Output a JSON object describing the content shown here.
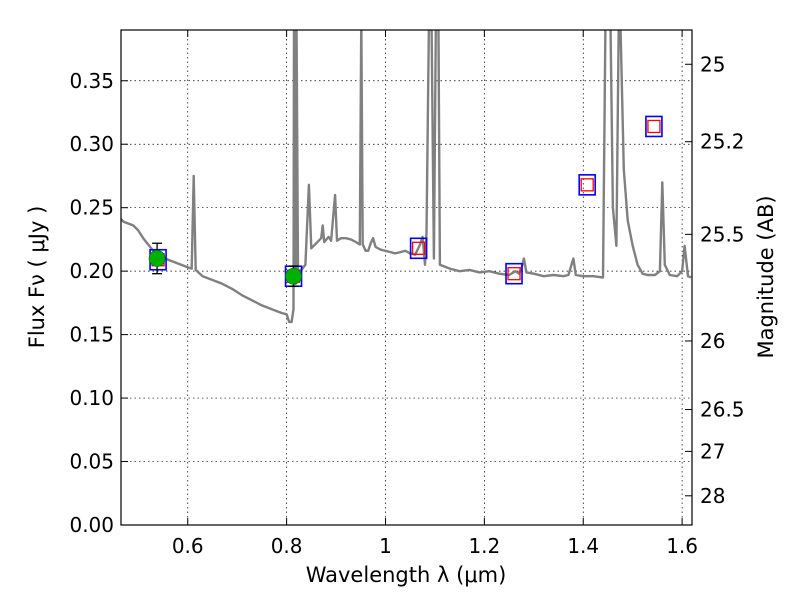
{
  "chart_data": {
    "type": "scatter",
    "xlabel": "Wavelength  λ (μm)",
    "ylabel": "Flux  Fν ( μJy )",
    "ylabel_right": "Magnitude (AB)",
    "xlim": [
      0.465,
      1.62
    ],
    "ylim": [
      0.0,
      0.39
    ],
    "grid": true,
    "x_ticks": [
      {
        "value": 0.6,
        "label": "0.6"
      },
      {
        "value": 0.8,
        "label": "0.8"
      },
      {
        "value": 1.0,
        "label": "1"
      },
      {
        "value": 1.2,
        "label": "1.2"
      },
      {
        "value": 1.4,
        "label": "1.4"
      },
      {
        "value": 1.6,
        "label": "1.6"
      }
    ],
    "y_ticks": [
      {
        "value": 0.0,
        "label": "0.00"
      },
      {
        "value": 0.05,
        "label": "0.05"
      },
      {
        "value": 0.1,
        "label": "0.10"
      },
      {
        "value": 0.15,
        "label": "0.15"
      },
      {
        "value": 0.2,
        "label": "0.20"
      },
      {
        "value": 0.25,
        "label": "0.25"
      },
      {
        "value": 0.3,
        "label": "0.30"
      },
      {
        "value": 0.35,
        "label": "0.35"
      }
    ],
    "mag_ticks": [
      {
        "label": "25",
        "flux": 0.363
      },
      {
        "label": "25.2",
        "flux": 0.302
      },
      {
        "label": "25.5",
        "flux": 0.229
      },
      {
        "label": "26",
        "flux": 0.145
      },
      {
        "label": "26.5",
        "flux": 0.091
      },
      {
        "label": "27",
        "flux": 0.058
      },
      {
        "label": "28",
        "flux": 0.023
      }
    ],
    "observed_points": [
      {
        "x": 0.538,
        "y": 0.21,
        "yerr": 0.012
      },
      {
        "x": 0.814,
        "y": 0.196,
        "yerr": 0.008
      }
    ],
    "model_band_flux": [
      {
        "x": 0.54,
        "y": 0.209
      },
      {
        "x": 0.814,
        "y": 0.196
      },
      {
        "x": 1.067,
        "y": 0.218
      },
      {
        "x": 1.26,
        "y": 0.198
      },
      {
        "x": 1.408,
        "y": 0.268
      },
      {
        "x": 1.543,
        "y": 0.314
      }
    ],
    "best_fit_band_flux": [
      {
        "x": 0.54,
        "y": 0.209
      },
      {
        "x": 0.814,
        "y": 0.196
      },
      {
        "x": 1.067,
        "y": 0.218
      },
      {
        "x": 1.26,
        "y": 0.198
      },
      {
        "x": 1.408,
        "y": 0.268
      },
      {
        "x": 1.543,
        "y": 0.314
      }
    ],
    "spectrum": [
      [
        0.465,
        0.241
      ],
      [
        0.47,
        0.239
      ],
      [
        0.49,
        0.236
      ],
      [
        0.5,
        0.232
      ],
      [
        0.51,
        0.226
      ],
      [
        0.52,
        0.221
      ],
      [
        0.53,
        0.216
      ],
      [
        0.54,
        0.213
      ],
      [
        0.56,
        0.209
      ],
      [
        0.58,
        0.206
      ],
      [
        0.6,
        0.203
      ],
      [
        0.608,
        0.202
      ],
      [
        0.612,
        0.275
      ],
      [
        0.616,
        0.201
      ],
      [
        0.63,
        0.196
      ],
      [
        0.65,
        0.193
      ],
      [
        0.67,
        0.19
      ],
      [
        0.69,
        0.186
      ],
      [
        0.71,
        0.181
      ],
      [
        0.73,
        0.177
      ],
      [
        0.75,
        0.173
      ],
      [
        0.77,
        0.17
      ],
      [
        0.79,
        0.167
      ],
      [
        0.8,
        0.166
      ],
      [
        0.805,
        0.16
      ],
      [
        0.81,
        0.16
      ],
      [
        0.814,
        0.17
      ],
      [
        0.815,
        0.4
      ],
      [
        0.818,
        0.19
      ],
      [
        0.82,
        0.4
      ],
      [
        0.823,
        0.199
      ],
      [
        0.83,
        0.201
      ],
      [
        0.838,
        0.205
      ],
      [
        0.845,
        0.268
      ],
      [
        0.85,
        0.218
      ],
      [
        0.86,
        0.222
      ],
      [
        0.87,
        0.226
      ],
      [
        0.873,
        0.236
      ],
      [
        0.876,
        0.223
      ],
      [
        0.885,
        0.227
      ],
      [
        0.89,
        0.224
      ],
      [
        0.898,
        0.26
      ],
      [
        0.902,
        0.224
      ],
      [
        0.91,
        0.226
      ],
      [
        0.92,
        0.226
      ],
      [
        0.93,
        0.225
      ],
      [
        0.94,
        0.223
      ],
      [
        0.948,
        0.221
      ],
      [
        0.951,
        0.4
      ],
      [
        0.954,
        0.221
      ],
      [
        0.96,
        0.216
      ],
      [
        0.965,
        0.216
      ],
      [
        0.97,
        0.222
      ],
      [
        0.975,
        0.226
      ],
      [
        0.98,
        0.219
      ],
      [
        0.99,
        0.217
      ],
      [
        1.0,
        0.216
      ],
      [
        1.01,
        0.215
      ],
      [
        1.02,
        0.214
      ],
      [
        1.03,
        0.215
      ],
      [
        1.04,
        0.216
      ],
      [
        1.05,
        0.214
      ],
      [
        1.06,
        0.213
      ],
      [
        1.07,
        0.221
      ],
      [
        1.075,
        0.227
      ],
      [
        1.08,
        0.205
      ],
      [
        1.083,
        0.23
      ],
      [
        1.088,
        0.4
      ],
      [
        1.093,
        0.4
      ],
      [
        1.098,
        0.21
      ],
      [
        1.102,
        0.4
      ],
      [
        1.107,
        0.4
      ],
      [
        1.11,
        0.205
      ],
      [
        1.13,
        0.202
      ],
      [
        1.15,
        0.2
      ],
      [
        1.17,
        0.201
      ],
      [
        1.19,
        0.199
      ],
      [
        1.21,
        0.2
      ],
      [
        1.23,
        0.198
      ],
      [
        1.25,
        0.197
      ],
      [
        1.263,
        0.2
      ],
      [
        1.27,
        0.198
      ],
      [
        1.275,
        0.202
      ],
      [
        1.28,
        0.21
      ],
      [
        1.285,
        0.199
      ],
      [
        1.3,
        0.198
      ],
      [
        1.32,
        0.196
      ],
      [
        1.34,
        0.197
      ],
      [
        1.36,
        0.196
      ],
      [
        1.37,
        0.197
      ],
      [
        1.38,
        0.21
      ],
      [
        1.385,
        0.197
      ],
      [
        1.4,
        0.196
      ],
      [
        1.42,
        0.196
      ],
      [
        1.44,
        0.195
      ],
      [
        1.445,
        0.4
      ],
      [
        1.455,
        0.4
      ],
      [
        1.46,
        0.25
      ],
      [
        1.467,
        0.22
      ],
      [
        1.472,
        0.4
      ],
      [
        1.475,
        0.4
      ],
      [
        1.482,
        0.28
      ],
      [
        1.49,
        0.24
      ],
      [
        1.5,
        0.22
      ],
      [
        1.51,
        0.205
      ],
      [
        1.52,
        0.198
      ],
      [
        1.53,
        0.197
      ],
      [
        1.545,
        0.197
      ],
      [
        1.555,
        0.2
      ],
      [
        1.56,
        0.27
      ],
      [
        1.565,
        0.205
      ],
      [
        1.575,
        0.197
      ],
      [
        1.59,
        0.196
      ],
      [
        1.6,
        0.2
      ],
      [
        1.605,
        0.22
      ],
      [
        1.612,
        0.196
      ],
      [
        1.618,
        0.195
      ]
    ]
  }
}
